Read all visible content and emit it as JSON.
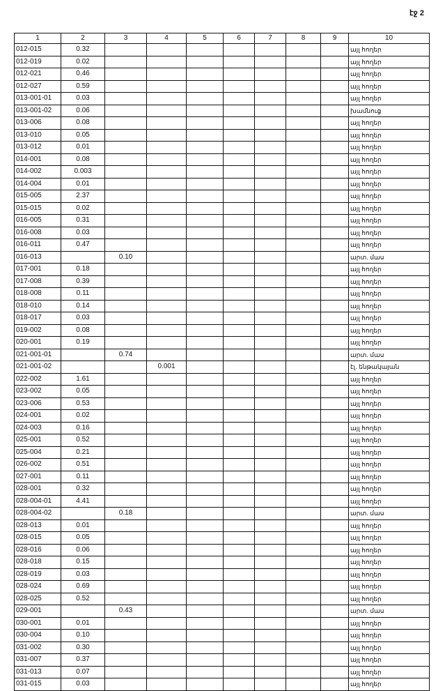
{
  "page_label": "էջ 2",
  "columns": [
    "1",
    "2",
    "3",
    "4",
    "5",
    "6",
    "7",
    "8",
    "9",
    "10"
  ],
  "rows": [
    [
      "012-015",
      "0.32",
      "",
      "",
      "այլ հողեր"
    ],
    [
      "012-019",
      "0.02",
      "",
      "",
      "այլ հողեր"
    ],
    [
      "012-021",
      "0.46",
      "",
      "",
      "այլ հողեր"
    ],
    [
      "012-027",
      "0.59",
      "",
      "",
      "այլ հողեր"
    ],
    [
      "013-001-01",
      "0.03",
      "",
      "",
      "այլ հողեր"
    ],
    [
      "013-001-02",
      "0.06",
      "",
      "",
      "խամնուց"
    ],
    [
      "013-006",
      "0.08",
      "",
      "",
      "այլ հողեր"
    ],
    [
      "013-010",
      "0.05",
      "",
      "",
      "այլ հողեր"
    ],
    [
      "013-012",
      "0.01",
      "",
      "",
      "այլ հողեր"
    ],
    [
      "014-001",
      "0.08",
      "",
      "",
      "այլ հողեր"
    ],
    [
      "014-002",
      "0.003",
      "",
      "",
      "այլ հողեր"
    ],
    [
      "014-004",
      "0.01",
      "",
      "",
      "այլ հողեր"
    ],
    [
      "015-005",
      "2.37",
      "",
      "",
      "այլ հողեր"
    ],
    [
      "015-015",
      "0.02",
      "",
      "",
      "այլ հողեր"
    ],
    [
      "016-005",
      "0.31",
      "",
      "",
      "այլ հողեր"
    ],
    [
      "016-008",
      "0.03",
      "",
      "",
      "այլ հողեր"
    ],
    [
      "016-011",
      "0.47",
      "",
      "",
      "այլ հողեր"
    ],
    [
      "016-013",
      "",
      "0.10",
      "",
      "արտ. մաս"
    ],
    [
      "017-001",
      "0.18",
      "",
      "",
      "այլ հողեր"
    ],
    [
      "017-008",
      "0.39",
      "",
      "",
      "այլ հողեր"
    ],
    [
      "018-008",
      "0.11",
      "",
      "",
      "այլ հողեր"
    ],
    [
      "018-010",
      "0.14",
      "",
      "",
      "այլ հողեր"
    ],
    [
      "018-017",
      "0.03",
      "",
      "",
      "այլ հողեր"
    ],
    [
      "019-002",
      "0.08",
      "",
      "",
      "այլ հողեր"
    ],
    [
      "020-001",
      "0.19",
      "",
      "",
      "այլ հողեր"
    ],
    [
      "021-001-01",
      "",
      "0.74",
      "",
      "արտ. մաս"
    ],
    [
      "021-001-02",
      "",
      "",
      "0.001",
      "էլ. ենթակայան"
    ],
    [
      "022-002",
      "1.61",
      "",
      "",
      "այլ հողեր"
    ],
    [
      "023-002",
      "0.05",
      "",
      "",
      "այլ հողեր"
    ],
    [
      "023-006",
      "0.53",
      "",
      "",
      "այլ հողեր"
    ],
    [
      "024-001",
      "0.02",
      "",
      "",
      "այլ հողեր"
    ],
    [
      "024-003",
      "0.16",
      "",
      "",
      "այլ հողեր"
    ],
    [
      "025-001",
      "0.52",
      "",
      "",
      "այլ հողեր"
    ],
    [
      "025-004",
      "0.21",
      "",
      "",
      "այլ հողեր"
    ],
    [
      "026-002",
      "0.51",
      "",
      "",
      "այլ հողեր"
    ],
    [
      "027-001",
      "0.11",
      "",
      "",
      "այլ հողեր"
    ],
    [
      "028-001",
      "0.32",
      "",
      "",
      "այլ հողեր"
    ],
    [
      "028-004-01",
      "4.41",
      "",
      "",
      "այլ հողեր"
    ],
    [
      "028-004-02",
      "",
      "0.18",
      "",
      "արտ. մաս"
    ],
    [
      "028-013",
      "0.01",
      "",
      "",
      "այլ հողեր"
    ],
    [
      "028-015",
      "0.05",
      "",
      "",
      "այլ հողեր"
    ],
    [
      "028-016",
      "0.06",
      "",
      "",
      "այլ հողեր"
    ],
    [
      "028-018",
      "0.15",
      "",
      "",
      "այլ հողեր"
    ],
    [
      "028-019",
      "0.03",
      "",
      "",
      "այլ հողեր"
    ],
    [
      "028-024",
      "0.69",
      "",
      "",
      "այլ հողեր"
    ],
    [
      "028-025",
      "0.52",
      "",
      "",
      "այլ հողեր"
    ],
    [
      "029-001",
      "",
      "0.43",
      "",
      "արտ. մաս"
    ],
    [
      "030-001",
      "0.01",
      "",
      "",
      "այլ հողեր"
    ],
    [
      "030-004",
      "0.10",
      "",
      "",
      "այլ հողեր"
    ],
    [
      "031-002",
      "0.30",
      "",
      "",
      "այլ հողեր"
    ],
    [
      "031-007",
      "0.37",
      "",
      "",
      "այլ հողեր"
    ],
    [
      "031-013",
      "0.07",
      "",
      "",
      "այլ հողեր"
    ],
    [
      "031-015",
      "0.03",
      "",
      "",
      "այլ հողեր"
    ]
  ]
}
